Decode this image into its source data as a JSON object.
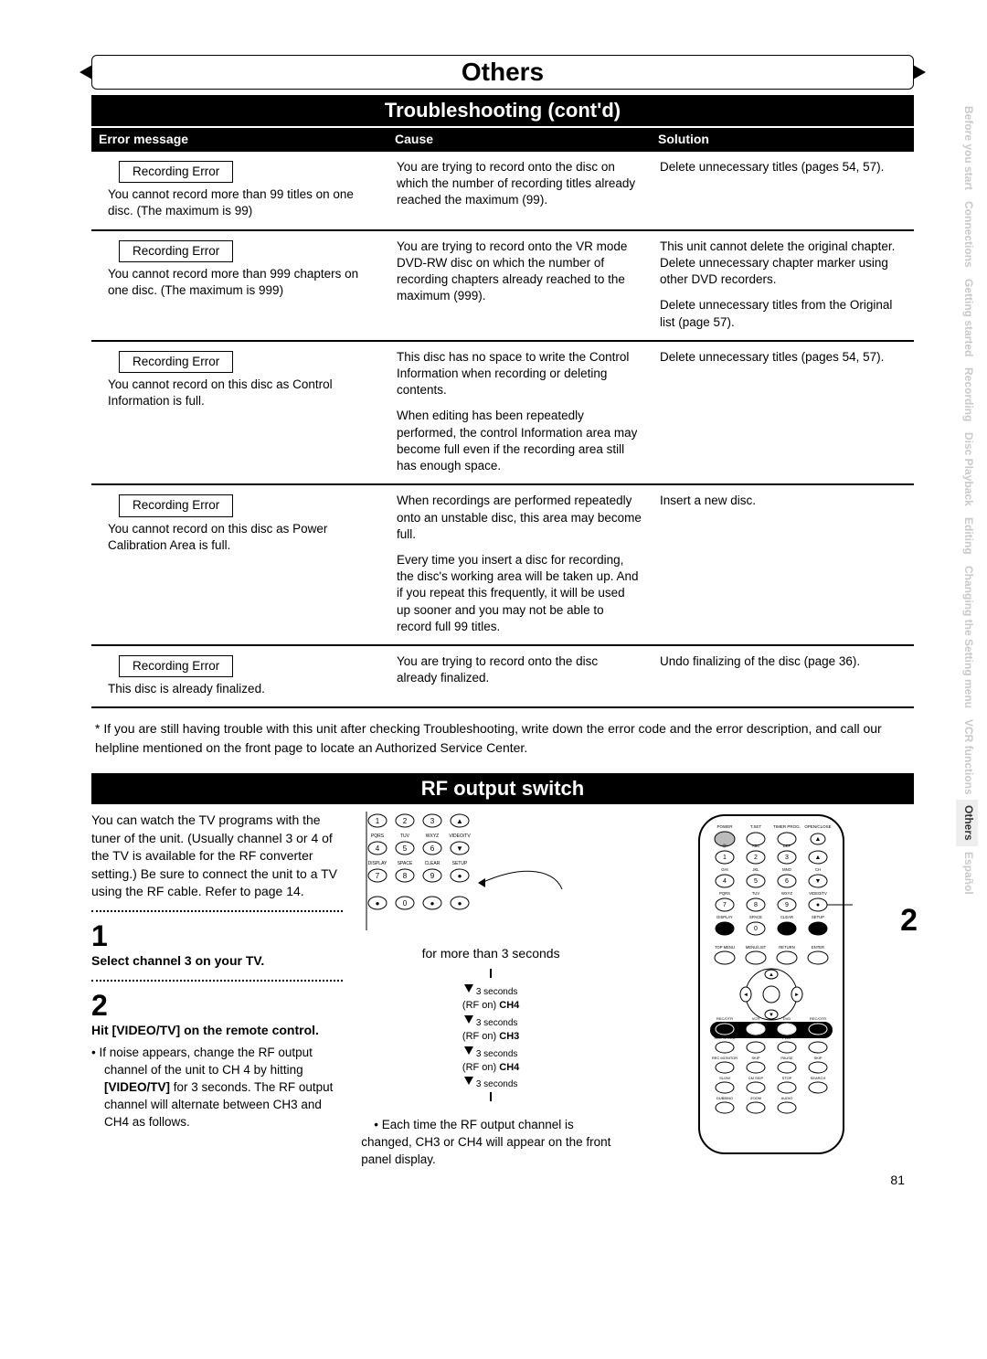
{
  "chapter_title": "Others",
  "topic_title": "Troubleshooting (cont'd)",
  "table": {
    "headers": {
      "error": "Error message",
      "cause": "Cause",
      "solution": "Solution"
    },
    "rows": [
      {
        "error_label": "Recording Error",
        "error_text": "You cannot record more than 99 titles on one disc. (The maximum is 99)",
        "causes": [
          "You are trying to record onto the disc on which the number of recording titles already reached the maximum (99)."
        ],
        "solutions": [
          "Delete unnecessary titles (pages 54, 57)."
        ]
      },
      {
        "error_label": "Recording Error",
        "error_text": "You cannot record more than 999 chapters on one disc. (The maximum is 999)",
        "causes": [
          "You are trying to record onto the VR mode DVD-RW disc on which the number of recording chapters already reached to the maximum (999)."
        ],
        "solutions": [
          "This unit cannot delete the original chapter. Delete unnecessary chapter marker using other DVD recorders.",
          "Delete unnecessary titles from the Original list (page 57)."
        ]
      },
      {
        "error_label": "Recording Error",
        "error_text": "You cannot record on this disc as Control Information is full.",
        "causes": [
          "This disc has no space to write the Control Information when recording or deleting contents.",
          "When editing has been repeatedly performed, the control Information area may become full even if the recording area still has enough space."
        ],
        "solutions": [
          "Delete unnecessary titles (pages 54, 57)."
        ]
      },
      {
        "error_label": "Recording Error",
        "error_text": "You cannot record on this disc as Power Calibration Area is full.",
        "causes": [
          "When recordings are performed repeatedly onto an unstable disc, this area may become full.",
          "Every time you insert a disc for recording, the disc's working area will be taken up.  And if you repeat this frequently, it will be used up sooner and you may not be able to record full 99 titles."
        ],
        "solutions": [
          "Insert a new disc."
        ]
      },
      {
        "error_label": "Recording Error",
        "error_text": "This disc is already finalized.",
        "causes": [
          "You are trying to record onto the disc already finalized."
        ],
        "solutions": [
          "Undo finalizing of the disc (page 36)."
        ]
      }
    ]
  },
  "footnote": "* If you are still having trouble with this unit after checking Troubleshooting, write down the error code and the error description, and call our helpline mentioned on the front page to locate an Authorized Service Center.",
  "rf": {
    "title": "RF output switch",
    "intro": "You can watch the TV programs with the tuner of the unit. (Usually channel 3 or 4 of the TV is available for the RF converter setting.) Be sure to connect the unit to a TV using the RF cable. Refer to page 14.",
    "step1_num": "1",
    "step1_title": "Select channel 3 on your TV.",
    "step2_num": "2",
    "step2_title": "Hit [VIDEO/TV] on the remote control.",
    "step2_body_lead": "If noise appears, change the RF output channel of the unit to CH 4 by hitting ",
    "step2_body_bold": "[VIDEO/TV]",
    "step2_body_tail": " for 3 seconds. The RF output channel will alternate between CH3 and CH4 as follows.",
    "for_more": "for more than 3 seconds",
    "seq": [
      {
        "label": "(RF on) CH4",
        "note": "3 seconds"
      },
      {
        "label": "(RF on) CH3",
        "note": "3 seconds"
      },
      {
        "label": "(RF on) CH4",
        "note": "3 seconds"
      }
    ],
    "seq_note_top": "3 seconds",
    "mid_footnote": "Each time the RF output channel is changed, CH3 or CH4 will appear on the front panel display.",
    "callout2": "2"
  },
  "side_tabs": [
    "Before you start",
    "Connections",
    "Getting started",
    "Recording",
    "Disc Playback",
    "Editing",
    "Changing the Setting menu",
    "VCR functions",
    "Others",
    "Español"
  ],
  "keypad": {
    "rows": [
      [
        "1",
        "2",
        "3",
        "▲"
      ],
      [
        "4",
        "5",
        "6",
        "▼"
      ],
      [
        "7",
        "8",
        "9",
        "●"
      ],
      [
        "●",
        "0",
        "●",
        "●"
      ]
    ],
    "row_labels_top": [
      "",
      "",
      "",
      ""
    ],
    "row_labels": [
      [
        "GHI",
        "JKL",
        "MNO",
        "CH"
      ],
      [
        "PQRS",
        "TUV",
        "WXYZ",
        "VIDEO/TV"
      ],
      [
        "DISPLAY",
        "SPACE",
        "CLEAR",
        "SETUP"
      ]
    ]
  },
  "remote_labels": {
    "top": [
      "POWER",
      "T.SET",
      "TIMER PROG.",
      "OPEN/CLOSE"
    ],
    "r1": [
      "@!",
      "ABC",
      "DEF",
      ""
    ],
    "nums": [
      [
        "1",
        "2",
        "3",
        "▲"
      ],
      [
        "4",
        "5",
        "6",
        "▼"
      ],
      [
        "7",
        "8",
        "9",
        "●"
      ],
      [
        "●",
        "0",
        "●",
        "●"
      ]
    ],
    "r2": [
      "GHI",
      "JKL",
      "MNO",
      "CH"
    ],
    "r3": [
      "PQRS",
      "TUV",
      "WXYZ",
      "VIDEO/TV"
    ],
    "r4": [
      "DISPLAY",
      "SPACE",
      "CLEAR",
      "SETUP"
    ],
    "r5": [
      "TOP MENU",
      "MENU/LIST",
      "RETURN",
      "ENTER"
    ],
    "mid": [
      "REC/OTR",
      "VCR",
      "DVD",
      "REC/OTR"
    ],
    "play": [
      "REC SPEED",
      "",
      "PLAY",
      ""
    ],
    "trans": [
      "REC MONITOR",
      "SKIP",
      "PAUSE",
      "SKIP"
    ],
    "bot1": [
      "SLOW",
      "CM SKIP",
      "STOP",
      "SEARCH"
    ],
    "bot2": [
      "DUBBING",
      "ZOOM",
      "AUDIO",
      ""
    ]
  },
  "page_number": "81",
  "colors": {
    "black": "#000000",
    "white": "#ffffff",
    "tab_inactive": "#c9c9c9"
  }
}
